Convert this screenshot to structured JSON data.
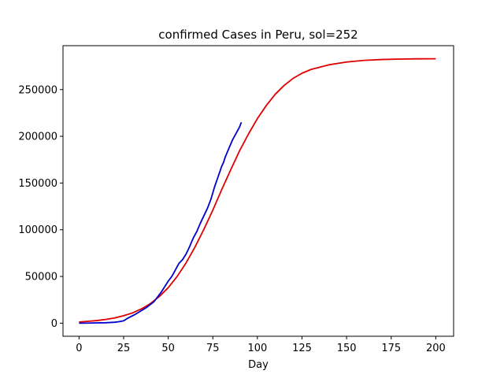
{
  "chart_data": {
    "type": "line",
    "title": "confirmed Cases in Peru, sol=252",
    "xlabel": "Day",
    "ylabel": "",
    "xlim": [
      -9,
      210
    ],
    "ylim": [
      -14000,
      297000
    ],
    "xticks": [
      0,
      25,
      50,
      75,
      100,
      125,
      150,
      175,
      200
    ],
    "yticks": [
      0,
      50000,
      100000,
      150000,
      200000,
      250000
    ],
    "grid": false,
    "series": [
      {
        "color": "#e00000",
        "x": [
          0,
          5,
          10,
          15,
          20,
          25,
          30,
          35,
          40,
          45,
          50,
          55,
          60,
          65,
          70,
          75,
          80,
          85,
          90,
          95,
          100,
          105,
          110,
          115,
          120,
          125,
          130,
          140,
          150,
          160,
          170,
          180,
          190,
          200
        ],
        "values": [
          1300,
          2000,
          2800,
          4000,
          5600,
          8000,
          11000,
          15300,
          21000,
          28500,
          38000,
          50000,
          64500,
          81500,
          100500,
          121000,
          143000,
          164000,
          184500,
          202500,
          219000,
          233000,
          245000,
          254500,
          262000,
          267500,
          271500,
          276500,
          279500,
          281300,
          282200,
          282700,
          282950,
          283000
        ]
      },
      {
        "color": "#0000cc",
        "x": [
          0,
          5,
          10,
          15,
          20,
          22,
          25,
          27,
          30,
          32,
          35,
          38,
          40,
          42,
          44,
          46,
          48,
          50,
          52,
          54,
          56,
          58,
          60,
          62,
          64,
          66,
          68,
          70,
          72,
          74,
          76,
          78,
          80,
          81,
          82,
          84,
          86,
          88,
          90,
          91
        ],
        "values": [
          0,
          100,
          300,
          500,
          1000,
          1500,
          2500,
          5000,
          8000,
          10000,
          13500,
          17000,
          20000,
          23000,
          28000,
          33000,
          39000,
          45000,
          50000,
          57000,
          64000,
          68000,
          74000,
          82000,
          91000,
          98000,
          107000,
          115000,
          123000,
          133000,
          146000,
          157000,
          168000,
          172000,
          178000,
          187000,
          196000,
          203000,
          210000,
          215000
        ]
      }
    ]
  }
}
